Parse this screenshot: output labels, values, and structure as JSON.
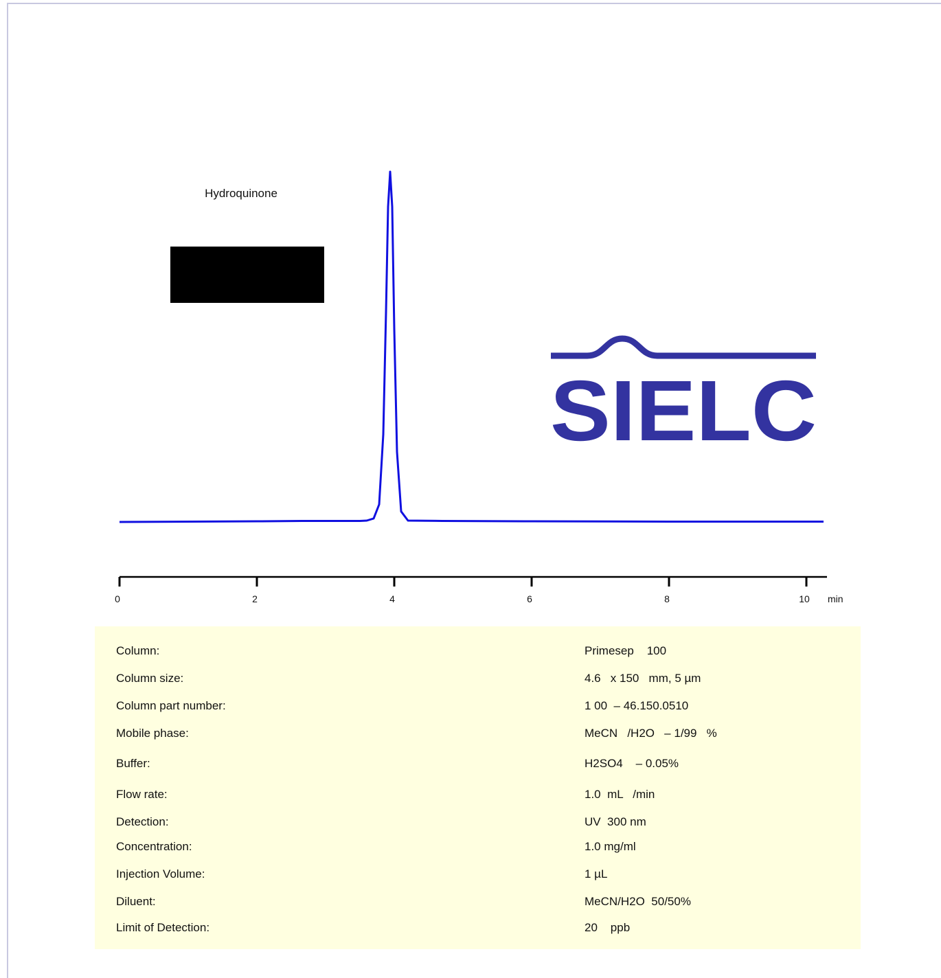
{
  "chart_data": {
    "type": "line",
    "title": "",
    "xlabel": "min",
    "ylabel": "",
    "xlim": [
      0,
      10.3
    ],
    "ylim": [
      0,
      1.05
    ],
    "x_ticks": [
      "0",
      "2",
      "4",
      "6",
      "8",
      "10"
    ],
    "grid": false,
    "series": [
      {
        "name": "Hydroquinone",
        "color": "#1010e0",
        "x": [
          0,
          2,
          2.66,
          3.5,
          3.6,
          3.7,
          3.78,
          3.84,
          3.88,
          3.91,
          3.94,
          3.97,
          4.0,
          4.04,
          4.1,
          4.2,
          4.7,
          6,
          8,
          10.25
        ],
        "y": [
          0,
          0.002,
          0.003,
          0.003,
          0.004,
          0.01,
          0.05,
          0.25,
          0.6,
          0.9,
          1.0,
          0.9,
          0.55,
          0.2,
          0.03,
          0.004,
          0.003,
          0.002,
          0.001,
          0.001
        ]
      }
    ],
    "annotations": [
      {
        "text": "Hydroquinone",
        "x": 3.93
      }
    ]
  },
  "brand": {
    "logo_text": "SIELC",
    "color": "#3333a0"
  },
  "conditions": [
    {
      "label": "Column:",
      "value": "Primesep    100"
    },
    {
      "label": "Column size:",
      "value": "4.6   x 150   mm, 5 µm"
    },
    {
      "label": "Column part number:",
      "value": "1 00  – 46.150.0510"
    },
    {
      "label": "Mobile phase:",
      "value": "MeCN   /H2O   – 1/99   %"
    },
    {
      "label": "Buffer:",
      "value": "H2SO4    – 0.05%"
    },
    {
      "label": "Flow        rate:",
      "value": "1.0  mL   /min"
    },
    {
      "label": "Detection:",
      "value": "UV  300 nm"
    },
    {
      "label": "Concentration:",
      "value": "1.0 mg/ml"
    },
    {
      "label": "Injection Volume:",
      "value": "1 µL"
    },
    {
      "label": "Diluent:",
      "value": "MeCN/H2O  50/50%"
    },
    {
      "label": "Limit of Detection:",
      "value": "20    ppb"
    }
  ]
}
